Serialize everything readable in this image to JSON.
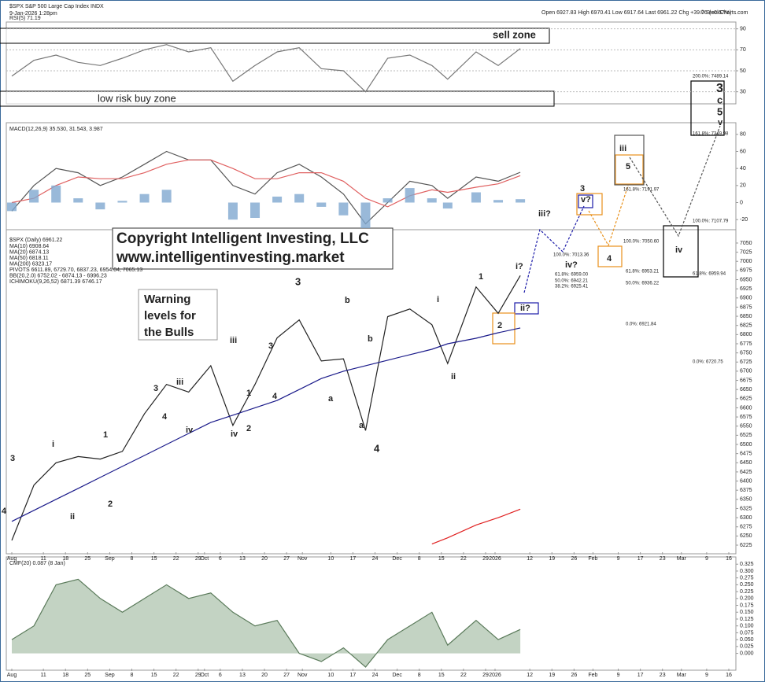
{
  "header": {
    "symbol": "$SPX S&P 500 Large Cap Index INDX",
    "date": "9-Jan-2026 1:28pm",
    "ohlc": "Open 6927.83  High 6970.41  Low 6917.64  Last 6961.22  Chg +39.76 (+0.57%)",
    "source": "© StockCharts.com"
  },
  "annotations": [
    {
      "text": "sell zone",
      "color": "#000000"
    },
    {
      "text": "low risk buy zone",
      "color": "#000000"
    },
    {
      "text": "Copyright Intelligent Investing, LLC",
      "color": "#000000"
    },
    {
      "text": "www.intelligentinvesting.market",
      "color": "#000000"
    },
    {
      "text": "Warning",
      "color": "#e00000"
    },
    {
      "text": "levels for",
      "color": "#e00000"
    },
    {
      "text": "the Bulls",
      "color": "#e00000"
    },
    {
      "text": "3",
      "color": "#e8901a"
    },
    {
      "text": "i",
      "color": "#1a1aa8"
    },
    {
      "text": "ii",
      "color": "#1a1aa8"
    },
    {
      "text": "iii",
      "color": "#1a1aa8"
    },
    {
      "text": "iv",
      "color": "#1a1aa8"
    },
    {
      "text": "1",
      "color": "#d020c0"
    },
    {
      "text": "2",
      "color": "#d020c0"
    },
    {
      "text": "3",
      "color": "#d020c0"
    },
    {
      "text": "4",
      "color": "#d020c0"
    },
    {
      "text": "iii",
      "color": "#333333"
    },
    {
      "text": "iv",
      "color": "#333333"
    },
    {
      "text": "1",
      "color": "#e8901a"
    },
    {
      "text": "2",
      "color": "#e8901a"
    },
    {
      "text": "3",
      "color": "#e8901a"
    },
    {
      "text": "4",
      "color": "#e8901a"
    },
    {
      "text": "3",
      "color": "#2a9a2a"
    },
    {
      "text": "a",
      "color": "#333333"
    },
    {
      "text": "b",
      "color": "#333333"
    },
    {
      "text": "a",
      "color": "#e8901a"
    },
    {
      "text": "b",
      "color": "#e8901a"
    },
    {
      "text": "4",
      "color": "#2a9a2a"
    },
    {
      "text": "i",
      "color": "#333333"
    },
    {
      "text": "ii",
      "color": "#333333"
    },
    {
      "text": "1",
      "color": "#e8901a"
    },
    {
      "text": "i?",
      "color": "#1a1aa8"
    },
    {
      "text": "ii?",
      "color": "#1a1aa8"
    },
    {
      "text": "2",
      "color": "#e8901a"
    },
    {
      "text": "iii?",
      "color": "#1a1aa8"
    },
    {
      "text": "iv?",
      "color": "#1a1aa8"
    },
    {
      "text": "v?",
      "color": "#1a1aa8"
    },
    {
      "text": "3",
      "color": "#e8901a"
    },
    {
      "text": "4",
      "color": "#e8901a"
    },
    {
      "text": "5",
      "color": "#e8901a"
    },
    {
      "text": "iii",
      "color": "#555555"
    },
    {
      "text": "iv",
      "color": "#555555"
    },
    {
      "text": "3",
      "color": "#000000"
    },
    {
      "text": "c",
      "color": "#e00000"
    },
    {
      "text": "5",
      "color": "#2a9a2a"
    },
    {
      "text": "v",
      "color": "#555555"
    },
    {
      "text": "4",
      "color": "#d020c0"
    },
    {
      "text": "200.0%: 7489.14",
      "color": "#666666"
    },
    {
      "text": "161.8%: 7349.98",
      "color": "#666666"
    },
    {
      "text": "161.8%: 7191.97",
      "color": "#666666"
    },
    {
      "text": "100.0%: 7107.79",
      "color": "#666666"
    },
    {
      "text": "100.0%: 7050.60",
      "color": "#666666"
    },
    {
      "text": "100.0%: 7013.36",
      "color": "#666666"
    },
    {
      "text": "61.8%: 6959.00",
      "color": "#666666"
    },
    {
      "text": "50.0%: 6942.21",
      "color": "#666666"
    },
    {
      "text": "38.2%: 6925.41",
      "color": "#666666"
    },
    {
      "text": "61.8%: 6953.21",
      "color": "#666666"
    },
    {
      "text": "50.0%: 6936.22",
      "color": "#666666"
    },
    {
      "text": "61.8%: 6959.94",
      "color": "#666666"
    },
    {
      "text": "0.0%: 6720.75",
      "color": "#666666"
    },
    {
      "text": "0.0%: 6921.84",
      "color": "#666666"
    }
  ],
  "chart_data": [
    {
      "type": "line",
      "title": "RSI(5) 71.19",
      "x": [
        0,
        7,
        14,
        21,
        28,
        35,
        42,
        49,
        56,
        63,
        70,
        77,
        84,
        91,
        98,
        105,
        112,
        119,
        126,
        133,
        138,
        147,
        154,
        161
      ],
      "xlim": [
        0,
        228
      ],
      "ylim": [
        20,
        95
      ],
      "yticks": [
        30,
        50,
        70,
        90
      ],
      "grid": true,
      "series": [
        {
          "name": "RSI",
          "color": "#777777",
          "values": [
            45,
            60,
            65,
            58,
            55,
            62,
            70,
            75,
            68,
            72,
            40,
            55,
            68,
            72,
            52,
            50,
            30,
            62,
            65,
            55,
            42,
            68,
            55,
            71.19
          ]
        }
      ]
    },
    {
      "type": "line",
      "title": "MACD(12,26,9) 35.530, 31.543, 3.987",
      "x": [
        0,
        7,
        14,
        21,
        28,
        35,
        42,
        49,
        56,
        63,
        70,
        77,
        84,
        91,
        98,
        105,
        112,
        119,
        126,
        133,
        138,
        147,
        154,
        161
      ],
      "xlim": [
        0,
        228
      ],
      "ylim": [
        -30,
        90
      ],
      "yticks": [
        -20,
        0,
        20,
        40,
        60,
        80
      ],
      "grid": false,
      "series": [
        {
          "name": "MACD",
          "color": "#555555",
          "values": [
            -10,
            20,
            40,
            35,
            20,
            30,
            45,
            60,
            50,
            50,
            20,
            10,
            35,
            45,
            30,
            10,
            -25,
            0,
            25,
            20,
            5,
            30,
            25,
            35.53
          ]
        },
        {
          "name": "Signal",
          "color": "#e06060",
          "values": [
            0,
            5,
            20,
            30,
            28,
            28,
            35,
            45,
            50,
            50,
            40,
            28,
            28,
            35,
            35,
            25,
            5,
            -5,
            8,
            15,
            12,
            18,
            22,
            31.543
          ]
        },
        {
          "name": "Histogram",
          "color": "#7fa8d0",
          "style": "bar",
          "values": [
            -10,
            15,
            20,
            5,
            -8,
            2,
            10,
            15,
            0,
            0,
            -20,
            -18,
            7,
            10,
            -5,
            -15,
            -30,
            5,
            17,
            5,
            -7,
            12,
            3,
            3.987
          ]
        }
      ]
    },
    {
      "type": "line",
      "title": "$SPX (Daily) 6961.22",
      "legend_texts": [
        {
          "text": "MA(10) 6908.64",
          "color": "#d020c0"
        },
        {
          "text": "MA(20) 6874.13",
          "color": "#2a7a2a"
        },
        {
          "text": "MA(50) 6818.11",
          "color": "#1a1a8a"
        },
        {
          "text": "MA(200) 6323.17",
          "color": "#e02020"
        },
        {
          "text": "PIVOTS 6611.89, 6729.70, 6837.23, 6954.04, 7065.13",
          "color": "#8040c0"
        },
        {
          "text": "BB(20,2.0) 6752.02 - 6874.13 - 6996.23",
          "color": "#888888"
        },
        {
          "text": "ICHIMOKU(9,26,52) 6871.39 6746.17",
          "color": "#2a8a2a"
        }
      ],
      "x": [
        0,
        7,
        14,
        21,
        28,
        35,
        42,
        49,
        56,
        63,
        70,
        77,
        84,
        91,
        98,
        105,
        112,
        119,
        126,
        133,
        138,
        147,
        154,
        161
      ],
      "xlim": [
        0,
        228
      ],
      "ylim": [
        6210,
        7080
      ],
      "yticks": [
        6225,
        6250,
        6275,
        6300,
        6325,
        6350,
        6375,
        6400,
        6425,
        6450,
        6475,
        6500,
        6525,
        6550,
        6575,
        6600,
        6625,
        6650,
        6675,
        6700,
        6725,
        6750,
        6775,
        6800,
        6825,
        6850,
        6875,
        6900,
        6925,
        6950,
        6975,
        7000,
        7025,
        7050
      ],
      "grid": false,
      "xticks": [
        {
          "value": 0,
          "label": "Aug"
        },
        {
          "value": 10,
          "label": "11"
        },
        {
          "value": 17,
          "label": "18"
        },
        {
          "value": 24,
          "label": "25"
        },
        {
          "value": 31,
          "label": "Sep"
        },
        {
          "value": 38,
          "label": "8"
        },
        {
          "value": 45,
          "label": "15"
        },
        {
          "value": 52,
          "label": "22"
        },
        {
          "value": 59,
          "label": "29"
        },
        {
          "value": 61,
          "label": "Oct"
        },
        {
          "value": 66,
          "label": "6"
        },
        {
          "value": 73,
          "label": "13"
        },
        {
          "value": 80,
          "label": "20"
        },
        {
          "value": 87,
          "label": "27"
        },
        {
          "value": 92,
          "label": "Nov"
        },
        {
          "value": 101,
          "label": "10"
        },
        {
          "value": 108,
          "label": "17"
        },
        {
          "value": 115,
          "label": "24"
        },
        {
          "value": 122,
          "label": "Dec"
        },
        {
          "value": 129,
          "label": "8"
        },
        {
          "value": 136,
          "label": "15"
        },
        {
          "value": 143,
          "label": "22"
        },
        {
          "value": 150,
          "label": "29"
        },
        {
          "value": 153,
          "label": "2026"
        },
        {
          "value": 164,
          "label": "12"
        },
        {
          "value": 171,
          "label": "19"
        },
        {
          "value": 178,
          "label": "26"
        },
        {
          "value": 184,
          "label": "Feb"
        },
        {
          "value": 192,
          "label": "9"
        },
        {
          "value": 199,
          "label": "17"
        },
        {
          "value": 206,
          "label": "23"
        },
        {
          "value": 212,
          "label": "Mar"
        },
        {
          "value": 220,
          "label": "9"
        },
        {
          "value": 227,
          "label": "16"
        }
      ],
      "series": [
        {
          "name": "Close",
          "color": "#222222",
          "values": [
            6238,
            6389,
            6450,
            6467,
            6460,
            6481,
            6584,
            6664,
            6643,
            6715,
            6552,
            6664,
            6791,
            6840,
            6728,
            6734,
            6538,
            6849,
            6870,
            6827,
            6721,
            6930,
            6858,
            6961.22
          ]
        },
        {
          "name": "MA(50)",
          "color": "#1a1a8a",
          "values": [
            6290,
            6320,
            6350,
            6380,
            6410,
            6440,
            6470,
            6500,
            6530,
            6560,
            6580,
            6600,
            6620,
            6650,
            6680,
            6700,
            6715,
            6730,
            6745,
            6760,
            6775,
            6790,
            6805,
            6818.11
          ]
        },
        {
          "name": "MA(200)",
          "color": "#e02020",
          "values": [
            null,
            null,
            null,
            null,
            null,
            null,
            null,
            null,
            null,
            null,
            null,
            null,
            null,
            null,
            null,
            null,
            null,
            null,
            null,
            6228,
            6245,
            6280,
            6300,
            6323.17
          ]
        }
      ]
    },
    {
      "type": "line",
      "title": "CMF(20) 0.087 (8 Jan)",
      "x": [
        0,
        7,
        14,
        21,
        28,
        35,
        42,
        49,
        56,
        63,
        70,
        77,
        84,
        91,
        98,
        105,
        112,
        119,
        126,
        133,
        138,
        147,
        154,
        161
      ],
      "xlim": [
        0,
        228
      ],
      "ylim": [
        -0.05,
        0.34
      ],
      "yticks": [
        0.325,
        {
          "value": 0.3,
          "label": "0.300"
        },
        0.275,
        {
          "value": 0.25,
          "label": "0.250"
        },
        0.225,
        {
          "value": 0.2,
          "label": "0.200"
        },
        0.175,
        {
          "value": 0.15,
          "label": "0.150"
        },
        0.125,
        {
          "value": 0.1,
          "label": "0.100"
        },
        0.075,
        {
          "value": 0.05,
          "label": "0.050"
        },
        0.025,
        {
          "value": 0,
          "label": "0.000"
        }
      ],
      "grid": false,
      "xticks": [
        {
          "value": 0,
          "label": "Aug"
        },
        {
          "value": 10,
          "label": "11"
        },
        {
          "value": 17,
          "label": "18"
        },
        {
          "value": 24,
          "label": "25"
        },
        {
          "value": 31,
          "label": "Sep"
        },
        {
          "value": 38,
          "label": "8"
        },
        {
          "value": 45,
          "label": "15"
        },
        {
          "value": 52,
          "label": "22"
        },
        {
          "value": 59,
          "label": "29"
        },
        {
          "value": 61,
          "label": "Oct"
        },
        {
          "value": 66,
          "label": "6"
        },
        {
          "value": 73,
          "label": "13"
        },
        {
          "value": 80,
          "label": "20"
        },
        {
          "value": 87,
          "label": "27"
        },
        {
          "value": 92,
          "label": "Nov"
        },
        {
          "value": 101,
          "label": "10"
        },
        {
          "value": 108,
          "label": "17"
        },
        {
          "value": 115,
          "label": "24"
        },
        {
          "value": 122,
          "label": "Dec"
        },
        {
          "value": 129,
          "label": "8"
        },
        {
          "value": 136,
          "label": "15"
        },
        {
          "value": 143,
          "label": "22"
        },
        {
          "value": 150,
          "label": "29"
        },
        {
          "value": 153,
          "label": "2026"
        },
        {
          "value": 164,
          "label": "12"
        },
        {
          "value": 171,
          "label": "19"
        },
        {
          "value": 178,
          "label": "26"
        },
        {
          "value": 184,
          "label": "Feb"
        },
        {
          "value": 192,
          "label": "9"
        },
        {
          "value": 199,
          "label": "17"
        },
        {
          "value": 206,
          "label": "23"
        },
        {
          "value": 212,
          "label": "Mar"
        },
        {
          "value": 220,
          "label": "9"
        },
        {
          "value": 227,
          "label": "16"
        }
      ],
      "series": [
        {
          "name": "CMF",
          "color": "#5a7a5a",
          "fill": "#a9c0a9",
          "values": [
            0.05,
            0.1,
            0.25,
            0.27,
            0.2,
            0.15,
            0.2,
            0.25,
            0.2,
            0.22,
            0.15,
            0.1,
            0.12,
            0,
            -0.03,
            0.02,
            -0.05,
            0.05,
            0.1,
            0.15,
            0.03,
            0.12,
            0.05,
            0.087
          ]
        }
      ]
    }
  ]
}
